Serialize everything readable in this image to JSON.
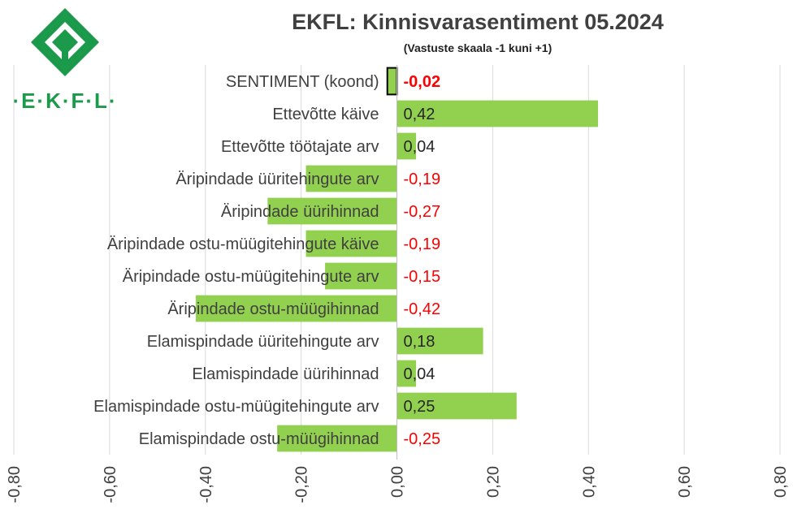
{
  "logo": {
    "text": "·E·K·F·L·",
    "color": "#1a9a4a"
  },
  "chart_data": {
    "type": "bar",
    "orientation": "horizontal",
    "title": "EKFL: Kinnisvarasentiment 05.2024",
    "subtitle": "(Vastuste skaala -1 kuni +1)",
    "xlim": [
      -0.8,
      0.8
    ],
    "x_ticks": [
      "-0,80",
      "-0,60",
      "-0,40",
      "-0,20",
      "0,00",
      "0,20",
      "0,40",
      "0,60",
      "0,80"
    ],
    "x_tick_values": [
      -0.8,
      -0.6,
      -0.4,
      -0.2,
      0.0,
      0.2,
      0.4,
      0.6,
      0.8
    ],
    "grid": true,
    "bar_color": "#92d050",
    "negative_label_color": "#ff0000",
    "positive_label_color": "#262626",
    "categories": [
      "SENTIMENT (koond)",
      "Ettevõtte käive",
      "Ettevõtte töötajate arv",
      "Äripindade üüritehingute arv",
      "Äripindade üürihinnad",
      "Äripindade ostu-müügitehingute käive",
      "Äripindade ostu-müügitehingute arv",
      "Äripindade ostu-müügihinnad",
      "Elamispindade üüritehingute arv",
      "Elamispindade üürihinnad",
      "Elamispindade ostu-müügitehingute arv",
      "Elamispindade ostu-müügihinnad"
    ],
    "values": [
      -0.02,
      0.42,
      0.04,
      -0.19,
      -0.27,
      -0.19,
      -0.15,
      -0.42,
      0.18,
      0.04,
      0.25,
      -0.25
    ],
    "value_labels": [
      "-0,02",
      "0,42",
      "0,04",
      "-0,19",
      "-0,27",
      "-0,19",
      "-0,15",
      "-0,42",
      "0,18",
      "0,04",
      "0,25",
      "-0,25"
    ],
    "highlight_index": 0
  }
}
